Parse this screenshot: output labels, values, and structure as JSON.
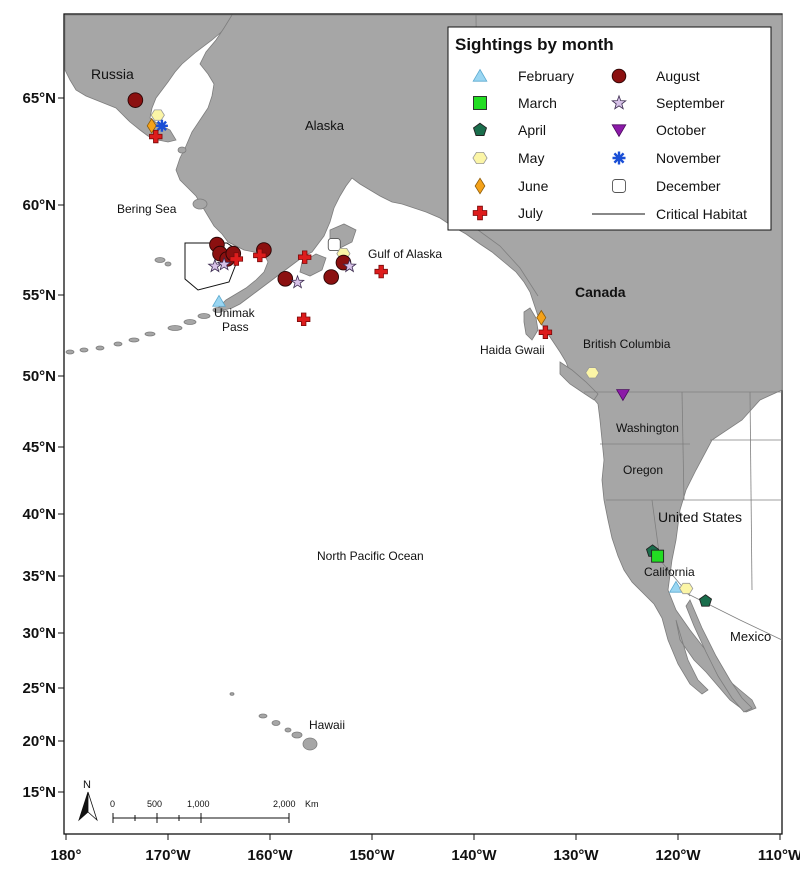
{
  "legend": {
    "title": "Sightings by month",
    "items": [
      {
        "key": "february",
        "label": "February",
        "color": "#9ad6f2",
        "icon": "triangle-up-icon"
      },
      {
        "key": "march",
        "label": "March",
        "color": "#22dd22",
        "icon": "square-icon"
      },
      {
        "key": "april",
        "label": "April",
        "color": "#1a6e4c",
        "icon": "pentagon-icon"
      },
      {
        "key": "may",
        "label": "May",
        "color": "#fbf5a6",
        "icon": "hexagon-icon"
      },
      {
        "key": "june",
        "label": "June",
        "color": "#f4a21a",
        "icon": "diamond-icon"
      },
      {
        "key": "july",
        "label": "July",
        "color": "#dd1c1c",
        "icon": "cross-icon"
      },
      {
        "key": "august",
        "label": "August",
        "color": "#8b1010",
        "icon": "circle-icon"
      },
      {
        "key": "september",
        "label": "September",
        "color": "#d7c2e8",
        "icon": "star-icon"
      },
      {
        "key": "october",
        "label": "October",
        "color": "#8c1aa8",
        "icon": "triangle-down-icon"
      },
      {
        "key": "november",
        "label": "November",
        "color": "#1a4fd6",
        "icon": "asterisk-icon"
      },
      {
        "key": "december",
        "label": "December",
        "color": "#ffffff",
        "icon": "rounded-square-icon"
      }
    ],
    "habitat_label": "Critical Habitat"
  },
  "place_labels": {
    "russia": "Russia",
    "alaska": "Alaska",
    "bering_sea": "Bering Sea",
    "gulf_of_alaska": "Gulf of Alaska",
    "unimak_line1": "Unimak",
    "unimak_line2": "Pass",
    "canada": "Canada",
    "haida_gwaii": "Haida Gwaii",
    "british_columbia": "British Columbia",
    "washington": "Washington",
    "oregon": "Oregon",
    "united_states": "United States",
    "california": "California",
    "mexico": "Mexico",
    "north_pacific": "North Pacific Ocean",
    "hawaii": "Hawaii"
  },
  "lat_ticks": [
    "65°N",
    "60°N",
    "55°N",
    "50°N",
    "45°N",
    "40°N",
    "35°N",
    "30°N",
    "25°N",
    "20°N",
    "15°N"
  ],
  "lon_ticks": [
    "180°",
    "170°W",
    "160°W",
    "150°W",
    "140°W",
    "130°W",
    "120°W",
    "110°W"
  ],
  "scale_bar": {
    "labels": [
      "0",
      "500",
      "1,000",
      "2,000"
    ],
    "unit": "Km",
    "north": "N"
  },
  "sightings": [
    {
      "month": "august",
      "lat": 64.9,
      "lon": -173.2
    },
    {
      "month": "may",
      "lat": 64.2,
      "lon": -171.0
    },
    {
      "month": "june",
      "lat": 63.7,
      "lon": -171.6
    },
    {
      "month": "november",
      "lat": 63.7,
      "lon": -170.6
    },
    {
      "month": "july",
      "lat": 63.2,
      "lon": -171.2
    },
    {
      "month": "august",
      "lat": 57.8,
      "lon": -165.2
    },
    {
      "month": "august",
      "lat": 57.3,
      "lon": -164.9
    },
    {
      "month": "august",
      "lat": 57.0,
      "lon": -164.2
    },
    {
      "month": "august",
      "lat": 57.3,
      "lon": -163.6
    },
    {
      "month": "august",
      "lat": 57.5,
      "lon": -160.6
    },
    {
      "month": "september",
      "lat": 56.6,
      "lon": -165.4
    },
    {
      "month": "september",
      "lat": 56.7,
      "lon": -164.5
    },
    {
      "month": "july",
      "lat": 57.0,
      "lon": -163.3
    },
    {
      "month": "july",
      "lat": 57.2,
      "lon": -161.0
    },
    {
      "month": "july",
      "lat": 57.1,
      "lon": -156.6
    },
    {
      "month": "august",
      "lat": 55.9,
      "lon": -158.5
    },
    {
      "month": "september",
      "lat": 55.7,
      "lon": -157.3
    },
    {
      "month": "february",
      "lat": 54.6,
      "lon": -165.0
    },
    {
      "month": "july",
      "lat": 53.5,
      "lon": -156.7
    },
    {
      "month": "december",
      "lat": 57.8,
      "lon": -153.7
    },
    {
      "month": "may",
      "lat": 57.3,
      "lon": -152.8
    },
    {
      "month": "august",
      "lat": 56.8,
      "lon": -152.8
    },
    {
      "month": "september",
      "lat": 56.6,
      "lon": -152.2
    },
    {
      "month": "august",
      "lat": 56.0,
      "lon": -154.0
    },
    {
      "month": "july",
      "lat": 56.3,
      "lon": -149.1
    },
    {
      "month": "june",
      "lat": 53.6,
      "lon": -133.4
    },
    {
      "month": "july",
      "lat": 52.7,
      "lon": -133.0
    },
    {
      "month": "may",
      "lat": 50.2,
      "lon": -128.4
    },
    {
      "month": "october",
      "lat": 48.7,
      "lon": -125.4
    },
    {
      "month": "april",
      "lat": 37.0,
      "lon": -122.5
    },
    {
      "month": "march",
      "lat": 36.6,
      "lon": -122.0
    },
    {
      "month": "february",
      "lat": 34.0,
      "lon": -120.2
    },
    {
      "month": "may",
      "lat": 33.9,
      "lon": -119.2
    },
    {
      "month": "april",
      "lat": 32.8,
      "lon": -117.3
    }
  ]
}
